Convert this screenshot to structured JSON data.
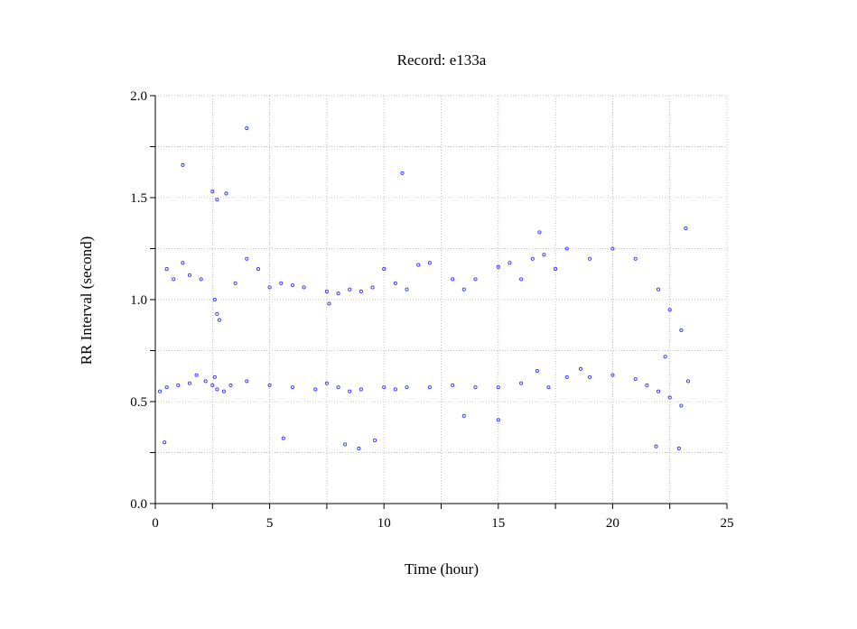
{
  "chart_data": {
    "type": "scatter",
    "title": "Record:  e133a",
    "xlabel": "Time (hour)",
    "ylabel": "RR Interval (second)",
    "xlim": [
      0,
      25
    ],
    "ylim": [
      0.0,
      2.0
    ],
    "xticks": [
      "0",
      "5",
      "10",
      "15",
      "20",
      "25"
    ],
    "yticks": [
      "0.0",
      "0.5",
      "1.0",
      "1.5",
      "2.0"
    ],
    "grid": true,
    "marker_color": "#3333ff",
    "series": [
      {
        "x": [
          0.2,
          0.5,
          1.0,
          1.5,
          1.8,
          2.2,
          2.5,
          2.6,
          2.7,
          3.0,
          3.3,
          4.0,
          5.0,
          6.0,
          7.0,
          7.5,
          8.0,
          8.5,
          9.0,
          10.0,
          10.5,
          11.0,
          12.0,
          13.0,
          14.0,
          15.0,
          16.0,
          16.7,
          17.2,
          18.0,
          18.6,
          19.0,
          20.0,
          21.0,
          21.5,
          22.0,
          22.5,
          23.0,
          23.3
        ],
        "y": [
          0.55,
          0.57,
          0.58,
          0.59,
          0.63,
          0.6,
          0.58,
          0.62,
          0.56,
          0.55,
          0.58,
          0.6,
          0.58,
          0.57,
          0.56,
          0.59,
          0.57,
          0.55,
          0.56,
          0.57,
          0.56,
          0.57,
          0.57,
          0.58,
          0.57,
          0.57,
          0.59,
          0.65,
          0.57,
          0.62,
          0.66,
          0.62,
          0.63,
          0.61,
          0.58,
          0.55,
          0.52,
          0.48,
          0.6
        ]
      },
      {
        "x": [
          0.5,
          0.8,
          1.2,
          1.5,
          2.0,
          2.6,
          2.7,
          2.8,
          3.5,
          4.0,
          4.5,
          5.0,
          5.5,
          6.0,
          6.5,
          7.5,
          7.6,
          8.0,
          8.5,
          9.0,
          9.5,
          10.0,
          10.5,
          11.0,
          11.5,
          12.0,
          13.0,
          13.5,
          14.0,
          15.0,
          15.5,
          16.0,
          16.5,
          17.0,
          17.5,
          18.0,
          19.0,
          20.0,
          21.0,
          22.0,
          22.5,
          23.0
        ],
        "y": [
          1.15,
          1.1,
          1.18,
          1.12,
          1.1,
          1.0,
          0.93,
          0.9,
          1.08,
          1.2,
          1.15,
          1.06,
          1.08,
          1.07,
          1.06,
          1.04,
          0.98,
          1.03,
          1.05,
          1.04,
          1.06,
          1.15,
          1.08,
          1.05,
          1.17,
          1.18,
          1.1,
          1.05,
          1.1,
          1.16,
          1.18,
          1.1,
          1.2,
          1.22,
          1.15,
          1.25,
          1.2,
          1.25,
          1.2,
          1.05,
          0.95,
          0.85
        ]
      },
      {
        "x": [
          0.4,
          1.2,
          2.5,
          2.7,
          3.1,
          4.0,
          5.6,
          8.3,
          8.9,
          9.6,
          10.8,
          13.5,
          15.0,
          16.8,
          21.9,
          22.3,
          22.9,
          23.2
        ],
        "y": [
          0.3,
          1.66,
          1.53,
          1.49,
          1.52,
          1.84,
          0.32,
          0.29,
          0.27,
          0.31,
          1.62,
          0.43,
          0.41,
          1.33,
          0.28,
          0.72,
          0.27,
          1.35
        ]
      }
    ]
  }
}
